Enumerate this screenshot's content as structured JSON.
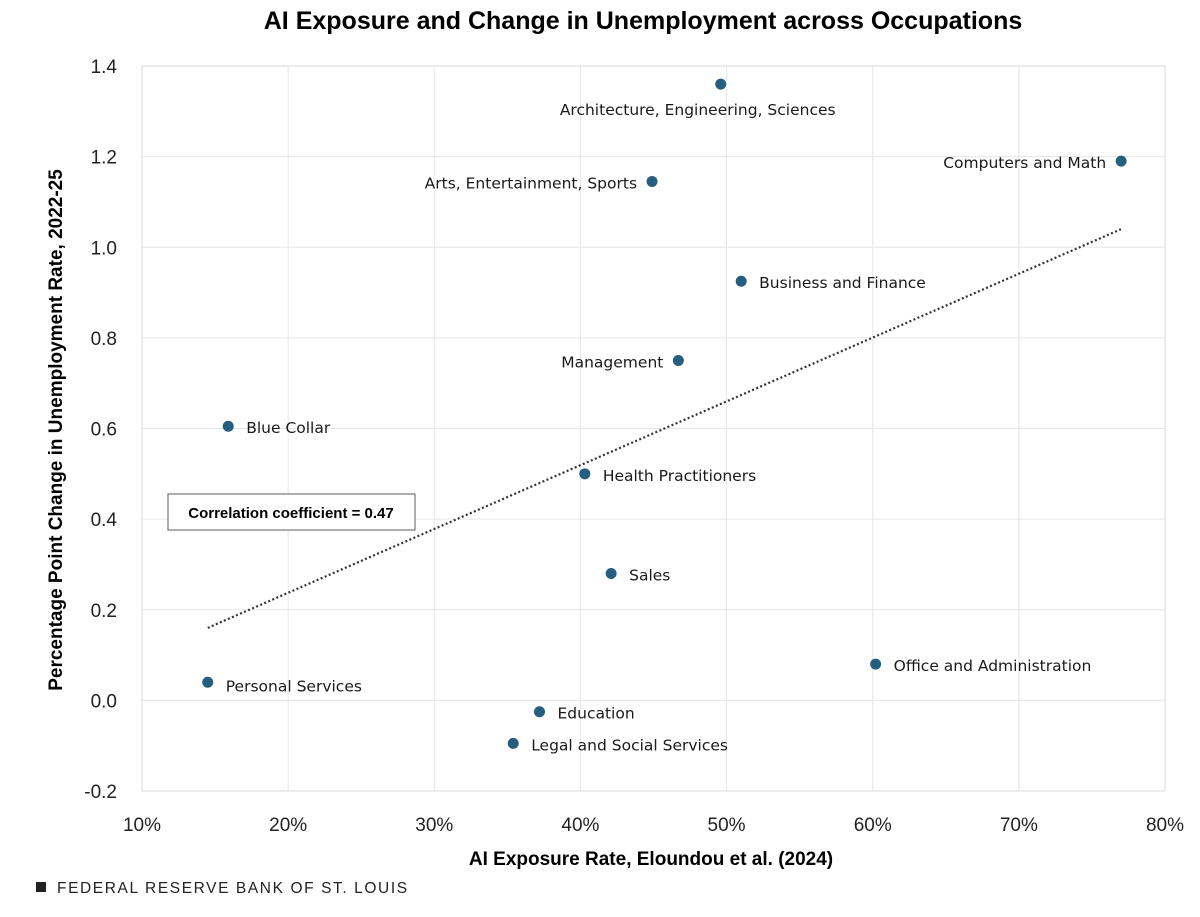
{
  "chart_data": {
    "type": "scatter",
    "title": "AI Exposure and Change in Unemployment across Occupations",
    "xlabel": "AI Exposure Rate, Eloundou et al. (2024)",
    "ylabel": "Percentage Point Change in Unemployment Rate, 2022-25",
    "xlim": [
      10,
      80
    ],
    "ylim": [
      -0.2,
      1.4
    ],
    "x_ticks": [
      10,
      20,
      30,
      40,
      50,
      60,
      70,
      80
    ],
    "x_tick_labels": [
      "10%",
      "20%",
      "30%",
      "40%",
      "50%",
      "60%",
      "70%",
      "80%"
    ],
    "y_ticks": [
      -0.2,
      0.0,
      0.2,
      0.4,
      0.6,
      0.8,
      1.0,
      1.2,
      1.4
    ],
    "y_tick_labels": [
      "-0.2",
      "0.0",
      "0.2",
      "0.4",
      "0.6",
      "0.8",
      "1.0",
      "1.2",
      "1.4"
    ],
    "grid": true,
    "marker_color": "#255e7e",
    "points": [
      {
        "label": "Architecture, Engineering, Sciences",
        "x": 49.6,
        "y": 1.36
      },
      {
        "label": "Computers and Math",
        "x": 77.0,
        "y": 1.19
      },
      {
        "label": "Arts, Entertainment, Sports",
        "x": 44.9,
        "y": 1.145
      },
      {
        "label": "Business and Finance",
        "x": 51.0,
        "y": 0.925
      },
      {
        "label": "Management",
        "x": 46.7,
        "y": 0.75
      },
      {
        "label": "Blue Collar",
        "x": 15.9,
        "y": 0.605
      },
      {
        "label": "Health Practitioners",
        "x": 40.3,
        "y": 0.5
      },
      {
        "label": "Sales",
        "x": 42.1,
        "y": 0.28
      },
      {
        "label": "Office and Administration",
        "x": 60.2,
        "y": 0.08
      },
      {
        "label": "Personal Services",
        "x": 14.5,
        "y": 0.04
      },
      {
        "label": "Education",
        "x": 37.2,
        "y": -0.025
      },
      {
        "label": "Legal and Social Services",
        "x": 35.4,
        "y": -0.095
      }
    ],
    "trendline": {
      "style": "dotted",
      "color": "#333333",
      "x": [
        14.5,
        77.0
      ],
      "y": [
        0.16,
        1.04
      ]
    },
    "annotation": {
      "text": "Correlation coefficient = 0.47"
    }
  },
  "footer": {
    "source": "FEDERAL RESERVE BANK OF ST. LOUIS"
  }
}
